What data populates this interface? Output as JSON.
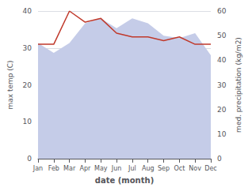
{
  "chart_data": {
    "type": "line",
    "xlabel": "date (month)",
    "ylabel": "max temp (C)",
    "y2label": "med. precipitation (kg/m2)",
    "categories": [
      "Jan",
      "Feb",
      "Mar",
      "Apr",
      "May",
      "Jun",
      "Jul",
      "Aug",
      "Sep",
      "Oct",
      "Nov",
      "Dec"
    ],
    "series": [
      {
        "type": "area",
        "axis": "y2",
        "color": "#c5cce8",
        "values": [
          47,
          43,
          47,
          55,
          57,
          53,
          57,
          55,
          50,
          49,
          51,
          42
        ]
      },
      {
        "type": "line",
        "axis": "y",
        "color": "#c0392b",
        "values": [
          31,
          31,
          40,
          37,
          38,
          34,
          33,
          33,
          32,
          33,
          31,
          31
        ]
      }
    ],
    "ylim": [
      0,
      40
    ],
    "yticks": [
      0,
      10,
      20,
      30,
      40
    ],
    "y2lim": [
      0,
      60
    ],
    "y2ticks": [
      0,
      10,
      20,
      30,
      40,
      50,
      60
    ],
    "grid": true
  }
}
